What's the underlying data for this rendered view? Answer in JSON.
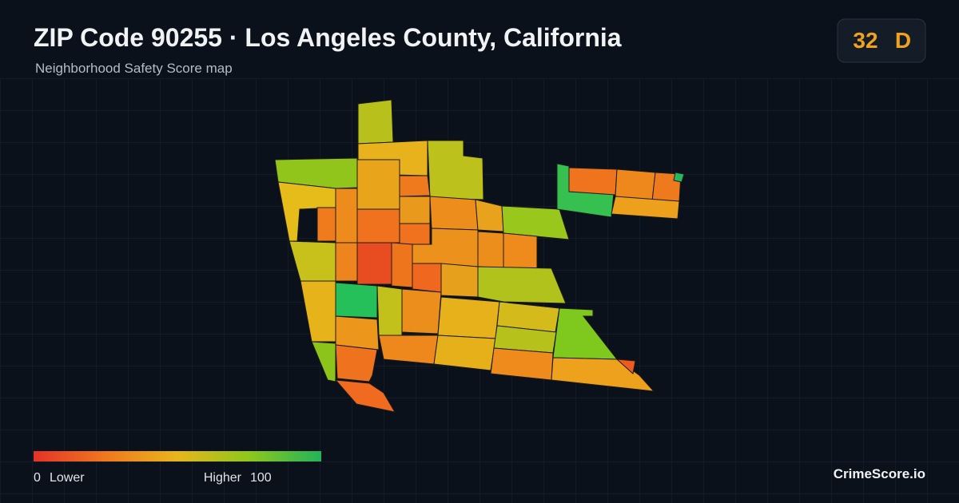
{
  "header": {
    "title": "ZIP Code 90255 · Los Angeles County, California",
    "subtitle": "Neighborhood Safety Score map"
  },
  "score": {
    "value": 32,
    "grade": "D"
  },
  "legend": {
    "min": 0,
    "min_label": "Lower",
    "max_label": "Higher",
    "max": 100
  },
  "brand": "CrimeScore.io"
}
